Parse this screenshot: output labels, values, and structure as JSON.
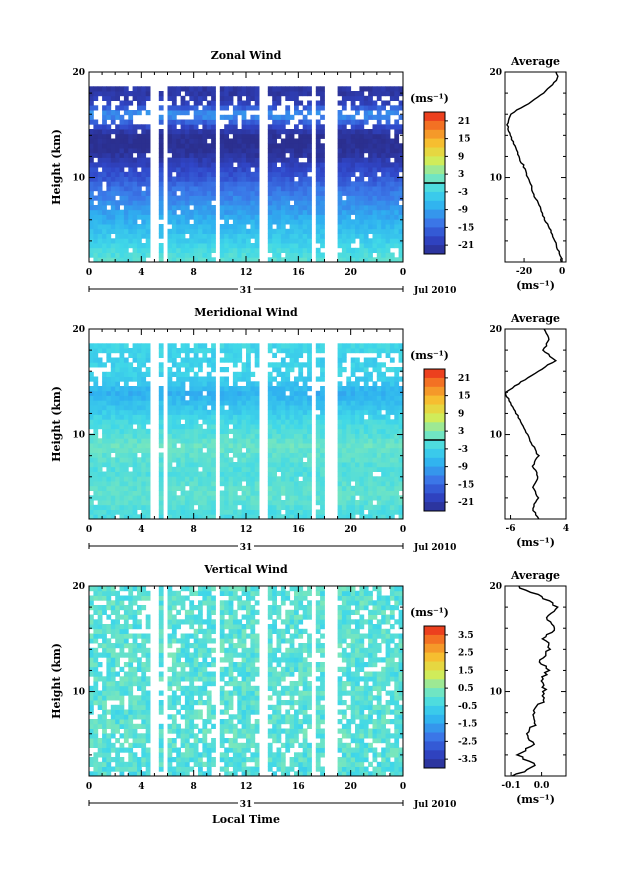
{
  "chart_data": [
    {
      "type": "heatmap",
      "title": "Zonal Wind",
      "xlabel": "",
      "ylabel": "Height (km)",
      "xlim": [
        0,
        24
      ],
      "ylim": [
        2,
        20
      ],
      "x_ticks": [
        "0",
        "4",
        "8",
        "12",
        "16",
        "20",
        "0"
      ],
      "y_ticks": [
        "10",
        "20"
      ],
      "date_day": "31",
      "date_label": "Jul 2010",
      "colorbar": {
        "unit": "(ms⁻¹)",
        "ticks": [
          "21",
          "15",
          "9",
          "3",
          "-3",
          "-9",
          "-15",
          "-21"
        ],
        "min": -24,
        "max": 24,
        "zero_marker": true
      },
      "field_profile": {
        "heights": [
          2,
          3,
          4,
          5,
          6,
          7,
          8,
          9,
          10,
          11,
          12,
          13,
          14,
          15,
          16,
          17,
          18
        ],
        "values": [
          0,
          -2,
          -4,
          -6,
          -8,
          -10,
          -12,
          -14,
          -17,
          -19,
          -22,
          -24,
          -24,
          -18,
          -10,
          -20,
          -22
        ]
      },
      "average": {
        "title": "Average",
        "xlabel": "(ms⁻¹)",
        "x_ticks": [
          "-20",
          "0"
        ],
        "y_ticks": [
          "10",
          "20"
        ],
        "xlim": [
          -30,
          2
        ],
        "heights": [
          2,
          3,
          4,
          5,
          6,
          7,
          8,
          9,
          10,
          11,
          12,
          13,
          14,
          15,
          16,
          17,
          18,
          19,
          19.5,
          20
        ],
        "values": [
          0,
          -2,
          -4,
          -6,
          -9,
          -11,
          -14,
          -16,
          -18,
          -20,
          -23,
          -25,
          -27,
          -29,
          -27,
          -18,
          -10,
          -4,
          -2,
          -3
        ]
      }
    },
    {
      "type": "heatmap",
      "title": "Meridional Wind",
      "xlabel": "",
      "ylabel": "Height (km)",
      "xlim": [
        0,
        24
      ],
      "ylim": [
        2,
        20
      ],
      "x_ticks": [
        "0",
        "4",
        "8",
        "12",
        "16",
        "20",
        "0"
      ],
      "y_ticks": [
        "10",
        "20"
      ],
      "date_day": "31",
      "date_label": "Jul 2010",
      "colorbar": {
        "unit": "(ms⁻¹)",
        "ticks": [
          "21",
          "15",
          "9",
          "3",
          "-3",
          "-9",
          "-15",
          "-21"
        ],
        "min": -24,
        "max": 24,
        "zero_marker": true
      },
      "field_profile": {
        "heights": [
          2,
          3,
          4,
          5,
          6,
          7,
          8,
          9,
          10,
          11,
          12,
          13,
          14,
          15,
          16,
          17,
          18
        ],
        "values": [
          -2,
          -1,
          0,
          0,
          -1,
          -1,
          0,
          1,
          -1,
          -2,
          -4,
          -6,
          -8,
          -5,
          -3,
          -4,
          -3
        ]
      },
      "average": {
        "title": "Average",
        "xlabel": "(ms⁻¹)",
        "x_ticks": [
          "-6",
          "4"
        ],
        "y_ticks": [
          "10",
          "20"
        ],
        "xlim": [
          -7,
          4
        ],
        "heights": [
          2,
          3,
          4,
          5,
          6,
          7,
          8,
          9,
          10,
          11,
          12,
          13,
          14,
          15,
          16,
          17,
          18,
          19,
          20
        ],
        "values": [
          -1,
          -2,
          -1,
          -2,
          -1,
          -2,
          -1,
          -2,
          -3,
          -4,
          -5,
          -6,
          -7,
          -4,
          -1,
          2,
          0,
          1,
          0
        ]
      }
    },
    {
      "type": "heatmap",
      "title": "Vertical Wind",
      "xlabel": "Local Time",
      "ylabel": "Height (km)",
      "xlim": [
        0,
        24
      ],
      "ylim": [
        2,
        20
      ],
      "x_ticks": [
        "0",
        "4",
        "8",
        "12",
        "16",
        "20",
        "0"
      ],
      "y_ticks": [
        "10",
        "20"
      ],
      "date_day": "31",
      "date_label": "Jul 2010",
      "colorbar": {
        "unit": "(ms⁻¹)",
        "ticks": [
          "3.5",
          "2.5",
          "1.5",
          "0.5",
          "-0.5",
          "-1.5",
          "-2.5",
          "-3.5"
        ],
        "min": -4,
        "max": 4,
        "zero_marker": false
      },
      "field_profile": {
        "heights": [
          2,
          4,
          6,
          8,
          10,
          12,
          14,
          16,
          18,
          20
        ],
        "values": [
          -0.2,
          -0.1,
          0,
          -0.1,
          0,
          -0.1,
          0,
          -0.1,
          0,
          -0.1
        ]
      },
      "average": {
        "title": "Average",
        "xlabel": "(ms⁻¹)",
        "x_ticks": [
          "-0.1",
          "0.0"
        ],
        "y_ticks": [
          "10",
          "20"
        ],
        "xlim": [
          -0.12,
          0.08
        ],
        "heights": [
          2,
          3,
          4,
          5,
          6,
          7,
          8,
          9,
          10,
          11,
          12,
          13,
          14,
          15,
          16,
          17,
          18,
          19,
          20
        ],
        "values": [
          -0.09,
          -0.02,
          -0.08,
          -0.03,
          -0.05,
          -0.02,
          -0.03,
          0.0,
          0.01,
          0.0,
          0.02,
          -0.01,
          0.03,
          0.01,
          0.04,
          0.02,
          0.05,
          0.0,
          -0.08
        ]
      }
    }
  ]
}
